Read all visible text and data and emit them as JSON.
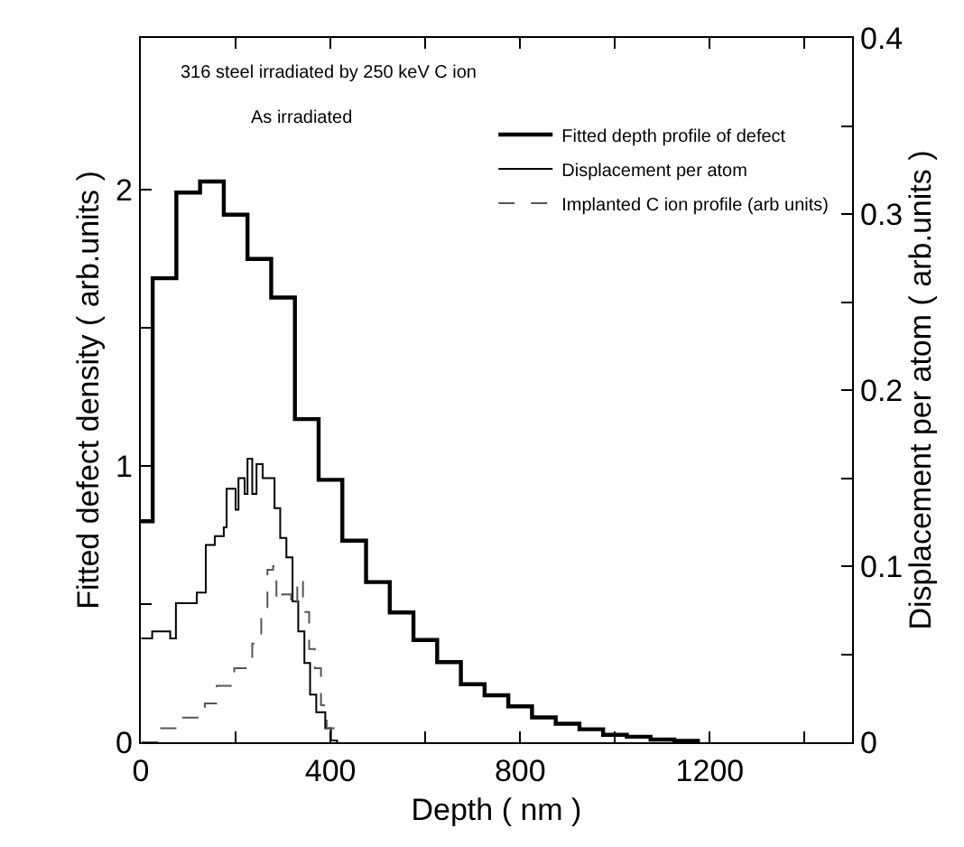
{
  "chart_data": {
    "type": "step",
    "xlabel": "Depth ( nm )",
    "ylabel": "Fitted defect density ( arb.units )",
    "y2label": "Displacement per atom ( arb.units )",
    "xlim": [
      0,
      1500
    ],
    "xticks": [
      0,
      {
        "value": 200,
        "label": null
      },
      400,
      {
        "value": 600,
        "label": null
      },
      800,
      {
        "value": 1000,
        "label": null
      },
      1200,
      {
        "value": 1400,
        "label": null
      }
    ],
    "ylim": [
      0,
      2.55
    ],
    "yticks": [
      0,
      {
        "value": 0.5,
        "label": null
      },
      1,
      {
        "value": 1.5,
        "label": null
      },
      2
    ],
    "y2lim": [
      0,
      0.4
    ],
    "y2ticks": [
      0,
      {
        "value": 0.05,
        "label": null
      },
      0.1,
      {
        "value": 0.15,
        "label": null
      },
      0.2,
      {
        "value": 0.25,
        "label": null
      },
      0.3,
      {
        "value": 0.35,
        "label": null
      },
      0.4
    ],
    "legend": "top right",
    "annotations": [
      "316 steel irradiated by 250 keV C ion",
      "As irradiated"
    ],
    "series": [
      {
        "name": "Fitted depth profile of defect",
        "color": "#000000",
        "line_style": "solid",
        "x": [
          0,
          25,
          75,
          125,
          175,
          225,
          275,
          325,
          375,
          425,
          475,
          525,
          575,
          625,
          675,
          725,
          775,
          825,
          875,
          925,
          975,
          1025,
          1075,
          1125,
          1175
        ],
        "values": [
          0.8,
          1.68,
          1.99,
          2.03,
          1.91,
          1.75,
          1.61,
          1.17,
          0.95,
          0.73,
          0.58,
          0.47,
          0.37,
          0.29,
          0.21,
          0.17,
          0.13,
          0.09,
          0.067,
          0.047,
          0.027,
          0.02,
          0.01,
          0.005,
          0
        ]
      },
      {
        "name": "Displacement per atom",
        "color": "#000000",
        "line_style": "solid",
        "axis": "y2",
        "x": [
          1,
          24,
          62,
          74,
          118,
          137,
          156,
          175,
          181,
          200,
          206,
          219,
          225,
          235,
          244,
          257,
          269,
          282,
          294,
          307,
          320,
          332,
          345,
          357,
          370,
          389,
          401,
          414
        ],
        "values": [
          0.059,
          0.063,
          0.059,
          0.079,
          0.085,
          0.112,
          0.117,
          0.122,
          0.144,
          0.132,
          0.15,
          0.141,
          0.161,
          0.141,
          0.158,
          0.15,
          0.15,
          0.133,
          0.116,
          0.105,
          0.08,
          0.063,
          0.045,
          0.027,
          0.017,
          0.008,
          0.001,
          0
        ]
      },
      {
        "name": "Implanted C ion profile (arb units)",
        "color": "#555555",
        "line_style": "dashed",
        "axis": "y2",
        "x": [
          2,
          40,
          84,
          135,
          160,
          197,
          235,
          254,
          267,
          279,
          286,
          298,
          317,
          330,
          342,
          355,
          367,
          380,
          392,
          411
        ],
        "values": [
          0,
          0.008,
          0.014,
          0.022,
          0.032,
          0.042,
          0.056,
          0.074,
          0.098,
          0.1,
          0.08,
          0.084,
          0.077,
          0.093,
          0.074,
          0.053,
          0.042,
          0.021,
          0.008,
          0.001
        ]
      }
    ]
  }
}
